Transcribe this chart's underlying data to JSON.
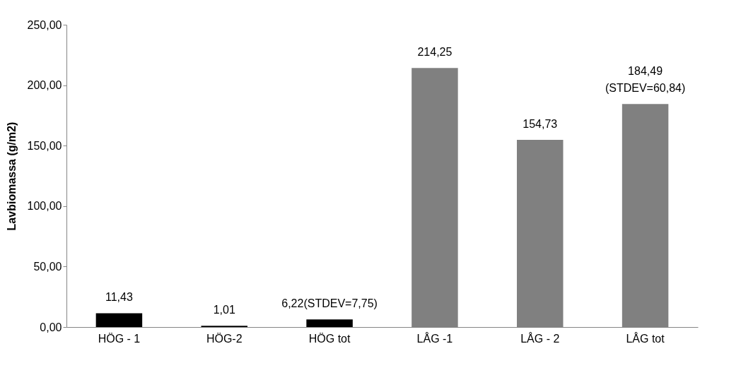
{
  "chart_data": {
    "type": "bar",
    "ylabel": "Lavbiomassa (g/m2)",
    "categories": [
      "HÖG - 1",
      "HÖG-2",
      "HÖG tot",
      "LÅG -1",
      "LÅG - 2",
      "LÅG tot"
    ],
    "values": [
      11.43,
      1.01,
      6.22,
      214.25,
      154.73,
      184.49
    ],
    "colors": [
      "#000000",
      "#000000",
      "#000000",
      "#808080",
      "#808080",
      "#808080"
    ],
    "value_labels": [
      "11,43",
      "1,01",
      "6,22(STDEV=7,75)",
      "214,25",
      "154,73",
      "184,49\n(STDEV=60,84)"
    ],
    "ylim": [
      0,
      250
    ],
    "yticks": [
      {
        "value": 0,
        "label": "0,00"
      },
      {
        "value": 50,
        "label": "50,00"
      },
      {
        "value": 100,
        "label": "100,00"
      },
      {
        "value": 150,
        "label": "150,00"
      },
      {
        "value": 200,
        "label": "200,00"
      },
      {
        "value": 250,
        "label": "250,00"
      }
    ],
    "grid": false,
    "legend": false
  }
}
